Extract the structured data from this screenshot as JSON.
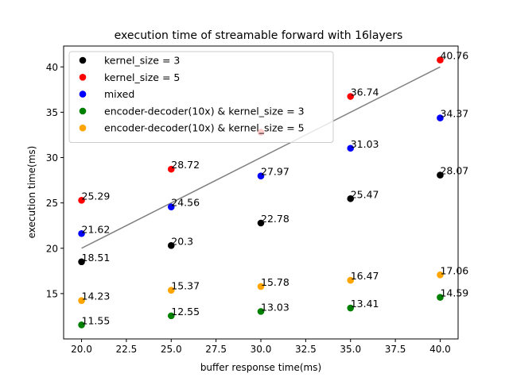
{
  "chart_data": {
    "type": "scatter",
    "title": "execution time of streamable forward with 16layers",
    "xlabel": "buffer response time(ms)",
    "ylabel": "execution time(ms)",
    "xlim": [
      19.0,
      41.0
    ],
    "ylim": [
      10.0,
      42.3
    ],
    "xticks": [
      "20.0",
      "22.5",
      "25.0",
      "27.5",
      "30.0",
      "32.5",
      "35.0",
      "37.5",
      "40.0"
    ],
    "yticks": [
      "15",
      "20",
      "25",
      "30",
      "35",
      "40"
    ],
    "x": [
      20,
      25,
      30,
      35,
      40
    ],
    "legend_position": "upper-left",
    "grid": false,
    "series": [
      {
        "name": "kernel_size = 3",
        "color": "#000000",
        "values": [
          18.51,
          20.3,
          22.78,
          25.47,
          28.07
        ],
        "labels": [
          "18.51",
          "20.3",
          "22.78",
          "25.47",
          "28.07"
        ]
      },
      {
        "name": "kernel_size = 5",
        "color": "#ff0000",
        "values": [
          25.29,
          28.72,
          32.8,
          36.74,
          40.76
        ],
        "labels": [
          "25.29",
          "28.72",
          "",
          "36.74",
          "40.76"
        ]
      },
      {
        "name": "mixed",
        "color": "#0000ff",
        "values": [
          21.62,
          24.56,
          27.97,
          31.03,
          34.37
        ],
        "labels": [
          "21.62",
          "24.56",
          "27.97",
          "31.03",
          "34.37"
        ]
      },
      {
        "name": "encoder-decoder(10x) & kernel_size = 3",
        "color": "#008000",
        "values": [
          11.55,
          12.55,
          13.03,
          13.41,
          14.59
        ],
        "labels": [
          "11.55",
          "12.55",
          "13.03",
          "13.41",
          "14.59"
        ]
      },
      {
        "name": "encoder-decoder(10x) & kernel_size = 5",
        "color": "#ffa500",
        "values": [
          14.23,
          15.37,
          15.78,
          16.47,
          17.06
        ],
        "labels": [
          "14.23",
          "15.37",
          "15.78",
          "16.47",
          "17.06"
        ]
      }
    ],
    "trendline": {
      "color": "#808080",
      "x": [
        20,
        40
      ],
      "y": [
        20,
        40
      ]
    }
  }
}
